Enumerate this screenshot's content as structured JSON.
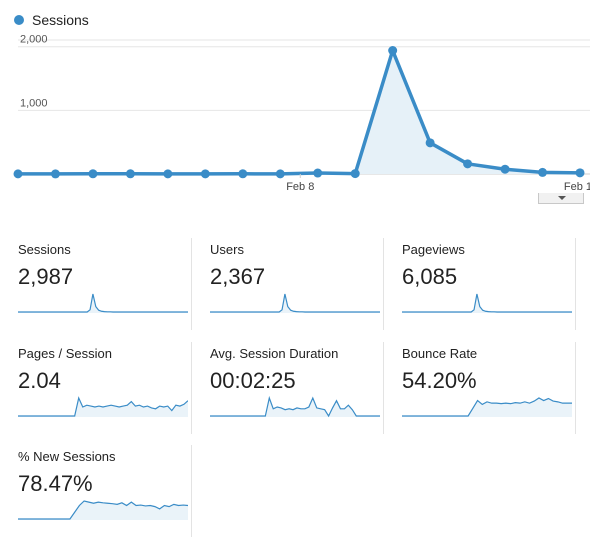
{
  "legend": {
    "series_name": "Sessions",
    "color": "#3a8cc7"
  },
  "chart_data": {
    "type": "area",
    "series": [
      {
        "name": "Sessions",
        "values": [
          2,
          1,
          3,
          3,
          2,
          2,
          3,
          2,
          15,
          6,
          1940,
          490,
          160,
          75,
          25,
          18
        ]
      }
    ],
    "y_ticks": [
      "2,000",
      "1,000"
    ],
    "x_tick_labels": [
      "Feb 8",
      "Feb 1"
    ],
    "ylim": [
      0,
      2200
    ],
    "grid": true
  },
  "metrics": [
    {
      "label": "Sessions",
      "value": "2,987",
      "spark": [
        0,
        0,
        0,
        0,
        0,
        0,
        0,
        0,
        0,
        0,
        0,
        0,
        0,
        0,
        0,
        0,
        0,
        0,
        0,
        0,
        0,
        0,
        0,
        0,
        0,
        12,
        100,
        30,
        10,
        4,
        2,
        1,
        1,
        0,
        0,
        0,
        0,
        0,
        0,
        0,
        0,
        0,
        0,
        0,
        0,
        0,
        0,
        0,
        0,
        0,
        0,
        0,
        0,
        0,
        0,
        0,
        0,
        0,
        0,
        0
      ]
    },
    {
      "label": "Users",
      "value": "2,367",
      "spark": [
        0,
        0,
        0,
        0,
        0,
        0,
        0,
        0,
        0,
        0,
        0,
        0,
        0,
        0,
        0,
        0,
        0,
        0,
        0,
        0,
        0,
        0,
        0,
        0,
        0,
        12,
        100,
        30,
        10,
        4,
        2,
        1,
        1,
        0,
        0,
        0,
        0,
        0,
        0,
        0,
        0,
        0,
        0,
        0,
        0,
        0,
        0,
        0,
        0,
        0,
        0,
        0,
        0,
        0,
        0,
        0,
        0,
        0,
        0,
        0
      ]
    },
    {
      "label": "Pageviews",
      "value": "6,085",
      "spark": [
        0,
        0,
        0,
        0,
        0,
        0,
        0,
        0,
        0,
        0,
        0,
        0,
        0,
        0,
        0,
        0,
        0,
        0,
        0,
        0,
        0,
        0,
        0,
        0,
        0,
        12,
        100,
        30,
        10,
        4,
        2,
        1,
        1,
        0,
        0,
        0,
        0,
        0,
        0,
        0,
        0,
        0,
        0,
        0,
        0,
        0,
        0,
        0,
        0,
        0,
        0,
        0,
        0,
        0,
        0,
        0,
        0,
        0,
        0,
        0
      ]
    },
    {
      "label": "Pages / Session",
      "value": "2.04",
      "spark": [
        0,
        0,
        0,
        0,
        0,
        0,
        0,
        0,
        0,
        0,
        0,
        0,
        0,
        0,
        0,
        100,
        50,
        60,
        55,
        50,
        55,
        50,
        55,
        60,
        55,
        50,
        55,
        60,
        80,
        55,
        60,
        50,
        55,
        45,
        40,
        55,
        50,
        55,
        30,
        60,
        55,
        65,
        85
      ]
    },
    {
      "label": "Avg. Session Duration",
      "value": "00:02:25",
      "spark": [
        0,
        0,
        0,
        0,
        0,
        0,
        0,
        0,
        0,
        0,
        0,
        0,
        0,
        0,
        0,
        100,
        40,
        50,
        45,
        35,
        40,
        35,
        45,
        40,
        40,
        50,
        100,
        45,
        40,
        35,
        0,
        45,
        85,
        40,
        40,
        60,
        35,
        0,
        0,
        0,
        0,
        0,
        0,
        0
      ]
    },
    {
      "label": "Bounce Rate",
      "value": "54.20%",
      "spark": [
        0,
        0,
        0,
        0,
        0,
        0,
        0,
        0,
        0,
        0,
        0,
        0,
        0,
        0,
        0,
        30,
        60,
        45,
        55,
        50,
        50,
        48,
        50,
        48,
        52,
        50,
        55,
        50,
        58,
        70,
        60,
        68,
        58,
        55,
        50,
        50,
        50
      ]
    },
    {
      "label": "% New Sessions",
      "value": "78.47%",
      "spark": [
        0,
        0,
        0,
        0,
        0,
        0,
        0,
        0,
        0,
        0,
        0,
        0,
        30,
        60,
        80,
        75,
        70,
        75,
        72,
        70,
        68,
        65,
        72,
        60,
        75,
        60,
        62,
        58,
        60,
        55,
        45,
        60,
        55,
        65,
        60,
        62,
        60
      ]
    }
  ]
}
